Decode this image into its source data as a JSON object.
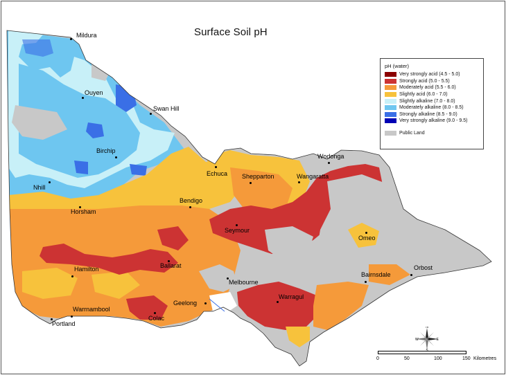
{
  "title": "Surface Soil pH",
  "legend": {
    "heading": "pH (water)",
    "classes": [
      {
        "label": "Very strongly acid (4.5 - 5.0)",
        "color": "#8b0000"
      },
      {
        "label": "Strongly acid (5.0 - 5.5)",
        "color": "#cc3333"
      },
      {
        "label": "Moderately acid (5.5 - 6.0)",
        "color": "#f59a3a"
      },
      {
        "label": "Slightly acid (6.0 - 7.0)",
        "color": "#f7c23c"
      },
      {
        "label": "Slightly alkaline (7.0 - 8.0)",
        "color": "#c8f0f8"
      },
      {
        "label": "Moderately alkaline (8.0 - 8.5)",
        "color": "#6ec6f0"
      },
      {
        "label": "Strongly alkaline (8.5 - 9.0)",
        "color": "#3a6fe6"
      },
      {
        "label": "Very strongly alkaline (9.0 - 9.5)",
        "color": "#0000b4"
      }
    ],
    "public_land": {
      "label": "Public Land",
      "color": "#c8c8c8"
    }
  },
  "cities": {
    "mildura": "Mildura",
    "ouyen": "Ouyen",
    "swan_hill": "Swan Hill",
    "birchip": "Birchip",
    "nhill": "Nhill",
    "horsham": "Horsham",
    "echuca": "Echuca",
    "shepparton": "Shepparton",
    "wodonga": "Wodonga",
    "wangaratta": "Wangaratta",
    "bendigo": "Bendigo",
    "seymour": "Seymour",
    "omeo": "Omeo",
    "hamilton": "Hamilton",
    "ballarat": "Ballarat",
    "melbourne": "Melbourne",
    "bairnsdale": "Bairnsdale",
    "orbost": "Orbost",
    "geelong": "Geelong",
    "warragul": "Warragul",
    "warrnambool": "Warrnambool",
    "colac": "Colac",
    "portland": "Portland"
  },
  "scale": {
    "ticks": [
      "0",
      "50",
      "100",
      "150"
    ],
    "unit": "Kilometres"
  },
  "compass": {
    "n": "N",
    "s": "S",
    "e": "E",
    "w": "W"
  }
}
